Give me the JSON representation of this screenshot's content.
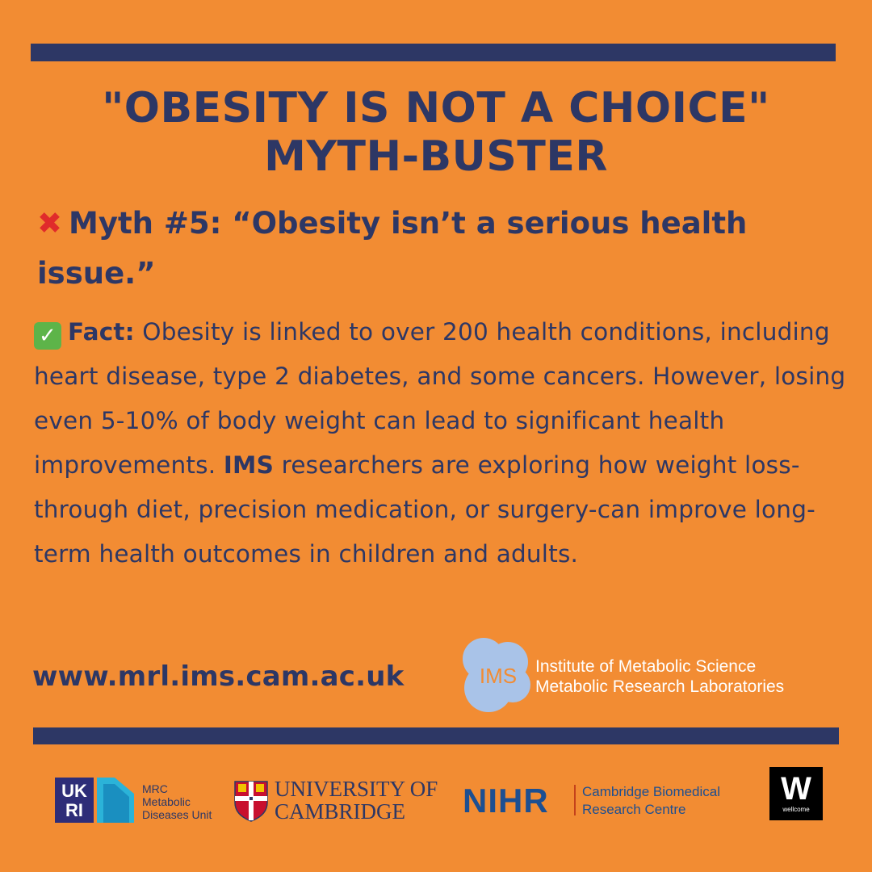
{
  "title": {
    "line1": "\"OBESITY IS NOT A CHOICE\"",
    "line2": "MYTH-BUSTER"
  },
  "myth": {
    "icon": "cross-mark-icon",
    "mark": "✖",
    "text": "Myth #5: “Obesity isn’t a serious health issue.”"
  },
  "fact": {
    "icon": "check-mark-icon",
    "mark": "✓",
    "label": "Fact:",
    "text_before": " Obesity is linked to over 200 health conditions, including heart disease, type 2 diabetes, and some cancers. However, losing even 5-10% of body weight can lead to significant health improvements. ",
    "emphasis": "IMS",
    "text_after": " researchers are exploring how weight loss-through diet, precision medication, or surgery-can improve long-term health outcomes in children and adults."
  },
  "footer": {
    "url": "www.mrl.ims.cam.ac.uk",
    "ims": {
      "abbr": "IMS",
      "line1": "Institute of Metabolic Science",
      "line2": "Metabolic Research Laboratories"
    }
  },
  "partners": {
    "ukri": {
      "abbr_top": "UK",
      "abbr_bottom": "RI",
      "line1": "MRC",
      "line2": "Metabolic",
      "line3": "Diseases Unit"
    },
    "cambridge": {
      "line1": "UNIVERSITY OF",
      "line2": "CAMBRIDGE"
    },
    "nihr": {
      "abbr": "NIHR",
      "line1": "Cambridge Biomedical",
      "line2": "Research Centre"
    },
    "wellcome": {
      "letter": "W",
      "name": "wellcome"
    }
  },
  "colors": {
    "background": "#F28C33",
    "navy": "#2D3765",
    "cross_red": "#E02B2B",
    "check_green": "#5DB449",
    "ims_bubble": "#A9C3E8"
  }
}
